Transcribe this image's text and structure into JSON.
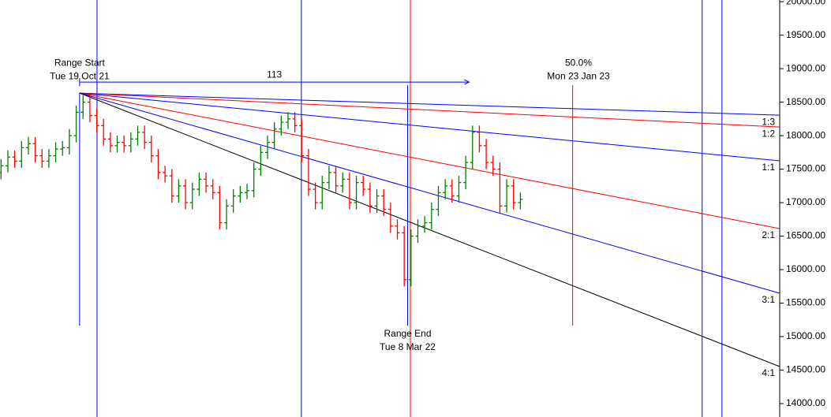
{
  "chart_data": {
    "type": "ohlc",
    "xlim": [
      -23.3,
      204.9
    ],
    "ylim": [
      13800,
      20025
    ],
    "yticks": [
      {
        "value": 14000,
        "label": "14000.00"
      },
      {
        "value": 14500,
        "label": "14500.00"
      },
      {
        "value": 15000,
        "label": "15000.00"
      },
      {
        "value": 15500,
        "label": "15500.00"
      },
      {
        "value": 16000,
        "label": "16000.00"
      },
      {
        "value": 16500,
        "label": "16500.00"
      },
      {
        "value": 17000,
        "label": "17000.00"
      },
      {
        "value": 17500,
        "label": "17500.00"
      },
      {
        "value": 18000,
        "label": "18000.00"
      },
      {
        "value": 18500,
        "label": "18500.00"
      },
      {
        "value": 19000,
        "label": "19000.00"
      },
      {
        "value": 19500,
        "label": "19500.00"
      },
      {
        "value": 20000,
        "label": "20000.00"
      }
    ],
    "up_color": "#008000",
    "down_color": "#ff0000",
    "x": [
      -23,
      -21,
      -19,
      -17,
      -15,
      -13,
      -11,
      -9,
      -7,
      -5,
      -3,
      -1,
      1,
      3,
      5,
      7,
      9,
      11,
      13,
      15,
      17,
      19,
      21,
      23,
      25,
      27,
      29,
      31,
      33,
      35,
      37,
      39,
      41,
      43,
      45,
      47,
      49,
      51,
      53,
      55,
      57,
      59,
      61,
      63,
      65,
      67,
      69,
      71,
      73,
      75,
      77,
      79,
      81,
      83,
      85,
      87,
      89,
      91,
      93,
      95,
      97,
      99,
      101,
      103,
      105,
      107,
      109,
      111,
      113,
      115,
      117,
      119,
      121,
      123,
      125,
      127,
      129
    ],
    "open": [
      17450,
      17550,
      17680,
      17620,
      17820,
      17880,
      17700,
      17620,
      17700,
      17800,
      17820,
      18000,
      18350,
      18500,
      18300,
      18150,
      17950,
      17850,
      17900,
      17850,
      17950,
      18050,
      17900,
      17700,
      17450,
      17400,
      17100,
      17250,
      17000,
      17200,
      17350,
      17250,
      17150,
      16700,
      16950,
      17100,
      17150,
      17180,
      17500,
      17750,
      17900,
      18100,
      18200,
      18250,
      18150,
      17700,
      17200,
      17000,
      17300,
      17450,
      17250,
      17350,
      17000,
      17300,
      17200,
      16950,
      17100,
      16900,
      16650,
      16550,
      15850,
      16500,
      16650,
      16700,
      16900,
      17150,
      17250,
      17100,
      17300,
      17600,
      18050,
      17850,
      17600,
      17500,
      16950,
      17250,
      17000
    ],
    "high": [
      17650,
      17780,
      17780,
      17920,
      17980,
      17980,
      17800,
      17800,
      17900,
      17920,
      18100,
      18450,
      18600,
      18600,
      18400,
      18250,
      18050,
      18000,
      18000,
      18050,
      18150,
      18150,
      18000,
      17800,
      17550,
      17500,
      17350,
      17350,
      17300,
      17450,
      17450,
      17350,
      17250,
      17050,
      17200,
      17250,
      17280,
      17600,
      17850,
      18000,
      18200,
      18300,
      18350,
      18350,
      18250,
      17800,
      17300,
      17400,
      17550,
      17550,
      17450,
      17450,
      17400,
      17400,
      17300,
      17200,
      17200,
      17000,
      16750,
      16650,
      16600,
      16750,
      16800,
      17000,
      17250,
      17350,
      17350,
      17400,
      17700,
      18150,
      18150,
      17950,
      17700,
      17600,
      17350,
      17350,
      17150
    ],
    "low": [
      17350,
      17450,
      17520,
      17520,
      17720,
      17600,
      17520,
      17520,
      17600,
      17700,
      17720,
      17900,
      18250,
      18200,
      18050,
      17850,
      17750,
      17750,
      17750,
      17750,
      17850,
      17800,
      17600,
      17350,
      17300,
      17000,
      17000,
      16900,
      16900,
      17100,
      17150,
      17050,
      16600,
      16600,
      16850,
      17000,
      17050,
      17080,
      17400,
      17650,
      17800,
      18000,
      18100,
      18050,
      17600,
      17100,
      16900,
      16900,
      17200,
      17150,
      17150,
      16900,
      16900,
      17100,
      16850,
      16850,
      16800,
      16550,
      16450,
      15750,
      15750,
      16400,
      16550,
      16600,
      16800,
      17050,
      17000,
      17000,
      17200,
      17500,
      17750,
      17500,
      17400,
      16850,
      16850,
      16900,
      16900
    ],
    "close": [
      17550,
      17680,
      17620,
      17820,
      17880,
      17700,
      17620,
      17700,
      17800,
      17820,
      18000,
      18350,
      18500,
      18300,
      18150,
      17950,
      17850,
      17900,
      17850,
      17950,
      18050,
      17900,
      17700,
      17450,
      17400,
      17100,
      17250,
      17000,
      17200,
      17350,
      17250,
      17150,
      16700,
      16950,
      17100,
      17150,
      17180,
      17500,
      17750,
      17900,
      18100,
      18200,
      18250,
      18150,
      17700,
      17200,
      17000,
      17300,
      17450,
      17250,
      17350,
      17000,
      17300,
      17200,
      16950,
      17100,
      16900,
      16650,
      16550,
      15850,
      16500,
      16650,
      16700,
      16900,
      17150,
      17250,
      17100,
      17300,
      17600,
      18050,
      17850,
      17600,
      17500,
      16950,
      17250,
      17000,
      17050
    ],
    "fan": {
      "origin_x": 0,
      "origin_y": 18635,
      "lines": [
        {
          "label": "1:3",
          "color": "#0000ff",
          "end_y": 18306
        },
        {
          "label": "1:2",
          "color": "#ff0000",
          "end_y": 18129
        },
        {
          "label": "1:1",
          "color": "#0000ff",
          "end_y": 17624
        },
        {
          "label": "2:1",
          "color": "#ff0000",
          "end_y": 16612
        },
        {
          "label": "3:1",
          "color": "#0000ff",
          "end_y": 15647
        },
        {
          "label": "4:1",
          "color": "#000000",
          "end_y": 14553
        }
      ]
    },
    "vertical_lines": [
      {
        "x": 0,
        "color": "#0000ff",
        "from": 15165,
        "to": 18635
      },
      {
        "x": 5.1,
        "color": "#0000ff"
      },
      {
        "x": 64.9,
        "color": "#0000ff"
      },
      {
        "x": 96,
        "color": "#0000ff",
        "from": 15165,
        "to": 18753
      },
      {
        "x": 96.8,
        "color": "#ff0000"
      },
      {
        "x": 144.3,
        "color": "#ff0000",
        "from": 15165,
        "to": 18753
      },
      {
        "x": 182.2,
        "color": "#0000ff"
      },
      {
        "x": 188,
        "color": "#0000ff"
      }
    ],
    "arrow": {
      "from_x": 0,
      "to_x": 114,
      "y": 18800,
      "color": "#0000ff",
      "label": "113"
    },
    "annotations": [
      {
        "x": 0,
        "y": 19082,
        "lines": [
          "Range Start",
          "Tue 19 Oct 21"
        ]
      },
      {
        "x": 96,
        "y": 15035,
        "lines": [
          "Range End",
          "Tue 8 Mar 22"
        ]
      },
      {
        "x": 146,
        "y": 19082,
        "lines": [
          "50.0%",
          "Mon 23 Jan 23"
        ]
      }
    ]
  }
}
